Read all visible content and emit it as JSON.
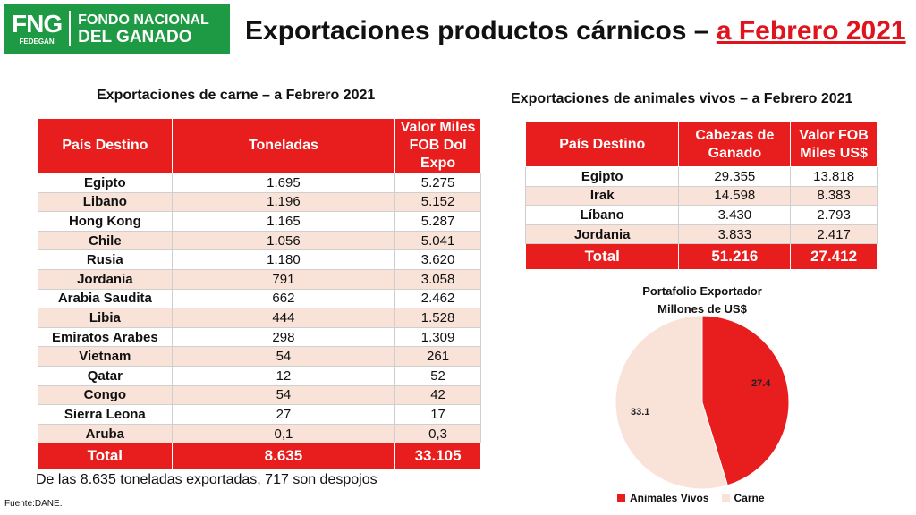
{
  "logo": {
    "abbr": "FNG",
    "sub": "FEDEGAN",
    "line1": "FONDO NACIONAL",
    "line2": "DEL GANADO"
  },
  "title": {
    "main": "Exportaciones productos cárnicos – ",
    "accent": "a Febrero 2021"
  },
  "meat": {
    "title": "Exportaciones de carne – a Febrero 2021",
    "headers": [
      "País Destino",
      "Toneladas",
      "Valor Miles FOB Dol Expo"
    ],
    "rows": [
      [
        "Egipto",
        "1.695",
        "5.275"
      ],
      [
        "Libano",
        "1.196",
        "5.152"
      ],
      [
        "Hong Kong",
        "1.165",
        "5.287"
      ],
      [
        "Chile",
        "1.056",
        "5.041"
      ],
      [
        "Rusia",
        "1.180",
        "3.620"
      ],
      [
        "Jordania",
        "791",
        "3.058"
      ],
      [
        "Arabia Saudita",
        "662",
        "2.462"
      ],
      [
        "Libia",
        "444",
        "1.528"
      ],
      [
        "Emiratos Arabes",
        "298",
        "1.309"
      ],
      [
        "Vietnam",
        "54",
        "261"
      ],
      [
        "Qatar",
        "12",
        "52"
      ],
      [
        "Congo",
        "54",
        "42"
      ],
      [
        "Sierra Leona",
        "27",
        "17"
      ],
      [
        "Aruba",
        "0,1",
        "0,3"
      ]
    ],
    "total": [
      "Total",
      "8.635",
      "33.105"
    ]
  },
  "live": {
    "title": "Exportaciones de animales vivos – a Febrero 2021",
    "headers": [
      "País Destino",
      "Cabezas de Ganado",
      "Valor FOB Miles US$"
    ],
    "rows": [
      [
        "Egipto",
        "29.355",
        "13.818"
      ],
      [
        "Irak",
        "14.598",
        "8.383"
      ],
      [
        "Líbano",
        "3.430",
        "2.793"
      ],
      [
        "Jordania",
        "3.833",
        "2.417"
      ]
    ],
    "total": [
      "Total",
      "51.216",
      "27.412"
    ]
  },
  "note": "De las 8.635 toneladas exportadas, 717 son despojos",
  "source": "Fuente:DANE.",
  "colors": {
    "red": "#e81d1d",
    "peach": "#f9e3d8",
    "green": "#1f9a44"
  },
  "chart_data": {
    "type": "pie",
    "title": "Portafolio Exportador Millones de US$",
    "title_lines": [
      "Portafolio Exportador",
      "Millones de US$"
    ],
    "categories": [
      "Animales Vivos",
      "Carne"
    ],
    "values": [
      27.4,
      33.1
    ],
    "labels": [
      "27.4",
      "33.1"
    ],
    "colors": [
      "#e81d1d",
      "#f9e3d8"
    ],
    "legend": "bottom"
  }
}
